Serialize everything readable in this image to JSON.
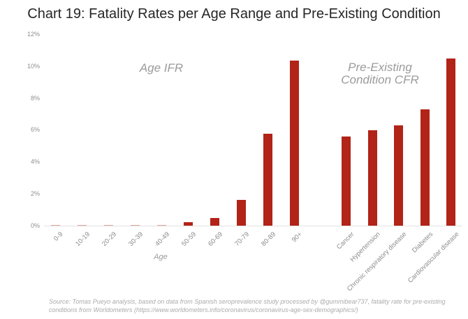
{
  "title": "Chart 19: Fatality Rates per Age Range and Pre-Existing Condition",
  "chart_data": {
    "type": "bar",
    "title": "Chart 19: Fatality Rates per Age Range and Pre-Existing Condition",
    "ylabel": "",
    "ylim": [
      0,
      12
    ],
    "yticks": [
      "0%",
      "2%",
      "4%",
      "6%",
      "8%",
      "10%",
      "12%"
    ],
    "ytick_values": [
      0,
      2,
      4,
      6,
      8,
      10,
      12
    ],
    "grid": false,
    "legend": "none",
    "bar_color": "#b22318",
    "bar_color_faint": "#e2a49e",
    "groups": [
      {
        "name": "Age IFR",
        "annotation": "Age IFR",
        "axis_label": "Age",
        "categories": [
          "0-9",
          "10-19",
          "20-29",
          "30-39",
          "40-49",
          "50-59",
          "60-69",
          "70-79",
          "80-89",
          "90+"
        ],
        "values": [
          0.002,
          0.004,
          0.02,
          0.03,
          0.06,
          0.2,
          0.5,
          1.6,
          5.8,
          10.4
        ]
      },
      {
        "name": "Pre-Existing Condition CFR",
        "annotation_line1": "Pre-Existing",
        "annotation_line2": "Condition CFR",
        "categories": [
          "Cancer",
          "Hypertension",
          "Chronic respiratory disease",
          "Diabetes",
          "Cardiovascular disease"
        ],
        "values": [
          5.6,
          6.0,
          6.3,
          7.3,
          10.5
        ]
      }
    ]
  },
  "source": {
    "line1": "Source: Tomas Pueyo analysis, based on data from Spanish seroprevalence study processed by @gummibear737, fatality rate for pre-existing",
    "line2": "conditions from Worldometers (https://www.worldometers.info/coronavirus/coronavirus-age-sex-demographics/)"
  }
}
